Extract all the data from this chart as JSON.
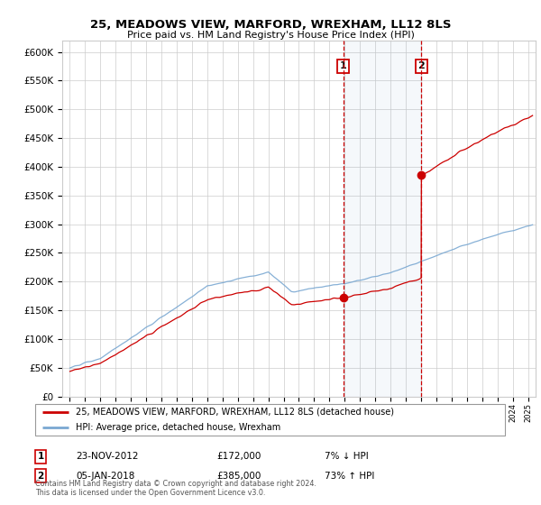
{
  "title": "25, MEADOWS VIEW, MARFORD, WREXHAM, LL12 8LS",
  "subtitle": "Price paid vs. HM Land Registry's House Price Index (HPI)",
  "legend_line1": "25, MEADOWS VIEW, MARFORD, WREXHAM, LL12 8LS (detached house)",
  "legend_line2": "HPI: Average price, detached house, Wrexham",
  "sale1_date": "23-NOV-2012",
  "sale1_price": "£172,000",
  "sale1_hpi": "7% ↓ HPI",
  "sale2_date": "05-JAN-2018",
  "sale2_price": "£385,000",
  "sale2_hpi": "73% ↑ HPI",
  "footer": "Contains HM Land Registry data © Crown copyright and database right 2024.\nThis data is licensed under the Open Government Licence v3.0.",
  "hpi_color": "#7aa8d2",
  "sale_color": "#cc0000",
  "sale1_x": 2012.9,
  "sale2_x": 2018.03,
  "sale1_price_val": 172000,
  "sale2_price_val": 385000,
  "ylim_min": 0,
  "ylim_max": 620000,
  "xlim_min": 1994.5,
  "xlim_max": 2025.5,
  "background_color": "#ffffff",
  "grid_color": "#cccccc"
}
